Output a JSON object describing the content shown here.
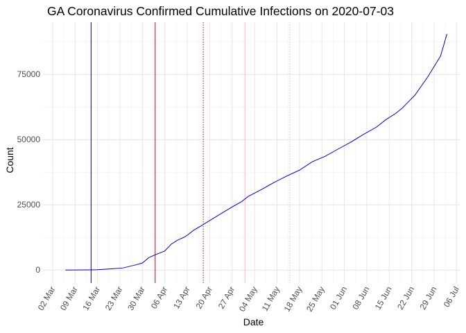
{
  "chart_data": {
    "type": "line",
    "title": "GA Coronavirus Confirmed Cumulative Infections on 2020-07-03",
    "xlabel": "Date",
    "ylabel": "Count",
    "xlim": [
      "2020-02-28",
      "2020-07-07"
    ],
    "ylim": [
      -5000,
      95000
    ],
    "grid": true,
    "x_ticks": [
      "2020-03-02",
      "2020-03-09",
      "2020-03-16",
      "2020-03-23",
      "2020-03-30",
      "2020-04-06",
      "2020-04-13",
      "2020-04-20",
      "2020-04-27",
      "2020-05-04",
      "2020-05-11",
      "2020-05-18",
      "2020-05-25",
      "2020-06-01",
      "2020-06-08",
      "2020-06-15",
      "2020-06-22",
      "2020-06-29",
      "2020-07-06"
    ],
    "x_tick_labels": [
      "02 Mar",
      "09 Mar",
      "16 Mar",
      "23 Mar",
      "30 Mar",
      "06 Apr",
      "13 Apr",
      "20 Apr",
      "27 Apr",
      "04 May",
      "11 May",
      "18 May",
      "25 May",
      "01 Jun",
      "08 Jun",
      "15 Jun",
      "22 Jun",
      "29 Jun",
      "06 Jul"
    ],
    "y_ticks": [
      0,
      25000,
      50000,
      75000
    ],
    "y_tick_labels": [
      "0",
      "25000",
      "50000",
      "75000"
    ],
    "series": [
      {
        "color": "#0000cc",
        "points": [
          [
            "2020-03-06",
            0
          ],
          [
            "2020-03-10",
            17
          ],
          [
            "2020-03-14",
            66
          ],
          [
            "2020-03-16",
            121
          ],
          [
            "2020-03-20",
            420
          ],
          [
            "2020-03-24",
            800
          ],
          [
            "2020-03-28",
            2000
          ],
          [
            "2020-03-30",
            2683
          ],
          [
            "2020-04-01",
            4748
          ],
          [
            "2020-04-03",
            5831
          ],
          [
            "2020-04-06",
            7314
          ],
          [
            "2020-04-08",
            9901
          ],
          [
            "2020-04-10",
            11483
          ],
          [
            "2020-04-12",
            12550
          ],
          [
            "2020-04-13",
            13315
          ],
          [
            "2020-04-15",
            15260
          ],
          [
            "2020-04-17",
            16700
          ],
          [
            "2020-04-20",
            18947
          ],
          [
            "2020-04-23",
            21214
          ],
          [
            "2020-04-27",
            24185
          ],
          [
            "2020-04-30",
            26262
          ],
          [
            "2020-05-02",
            28196
          ],
          [
            "2020-05-06",
            30743
          ],
          [
            "2020-05-10",
            33508
          ],
          [
            "2020-05-14",
            36000
          ],
          [
            "2020-05-18",
            38283
          ],
          [
            "2020-05-22",
            41500
          ],
          [
            "2020-05-26",
            43586
          ],
          [
            "2020-05-30",
            46331
          ],
          [
            "2020-06-03",
            49000
          ],
          [
            "2020-06-07",
            52000
          ],
          [
            "2020-06-11",
            54770
          ],
          [
            "2020-06-14",
            57681
          ],
          [
            "2020-06-17",
            60030
          ],
          [
            "2020-06-19",
            62000
          ],
          [
            "2020-06-21",
            64500
          ],
          [
            "2020-06-23",
            67000
          ],
          [
            "2020-06-25",
            70500
          ],
          [
            "2020-06-27",
            74000
          ],
          [
            "2020-06-29",
            78000
          ],
          [
            "2020-07-01",
            82000
          ],
          [
            "2020-07-03",
            90493
          ]
        ]
      }
    ],
    "reference_lines": [
      {
        "date": "2020-03-14",
        "color": "#00008b",
        "style": "solid"
      },
      {
        "date": "2020-04-03",
        "color": "#cc0000",
        "style": "solid"
      },
      {
        "date": "2020-04-18",
        "color": "#cc0000",
        "style": "dotted"
      },
      {
        "date": "2020-05-01",
        "color": "#ffb6c1",
        "style": "solid"
      },
      {
        "date": "2020-05-15",
        "color": "#ffb6c1",
        "style": "dotted"
      }
    ]
  }
}
